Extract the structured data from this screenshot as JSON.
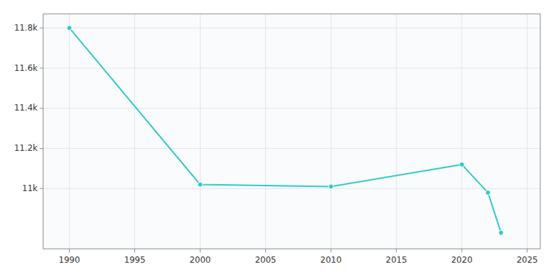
{
  "chart_data": {
    "type": "line",
    "x": [
      1990,
      2000,
      2010,
      2020,
      2022,
      2023
    ],
    "values": [
      11800,
      11020,
      11010,
      11120,
      10980,
      10780
    ],
    "color": "#2ec8c8",
    "marker": "circle",
    "xlim": [
      1988,
      2026
    ],
    "ylim": [
      10700,
      11870
    ],
    "xticks": [
      1990,
      1995,
      2000,
      2005,
      2010,
      2015,
      2020,
      2025
    ],
    "yticks": [
      {
        "value": 11000,
        "label": "11k"
      },
      {
        "value": 11200,
        "label": "11.2k"
      },
      {
        "value": 11400,
        "label": "11.4k"
      },
      {
        "value": 11600,
        "label": "11.6k"
      },
      {
        "value": 11800,
        "label": "11.8k"
      }
    ],
    "grid": true
  }
}
